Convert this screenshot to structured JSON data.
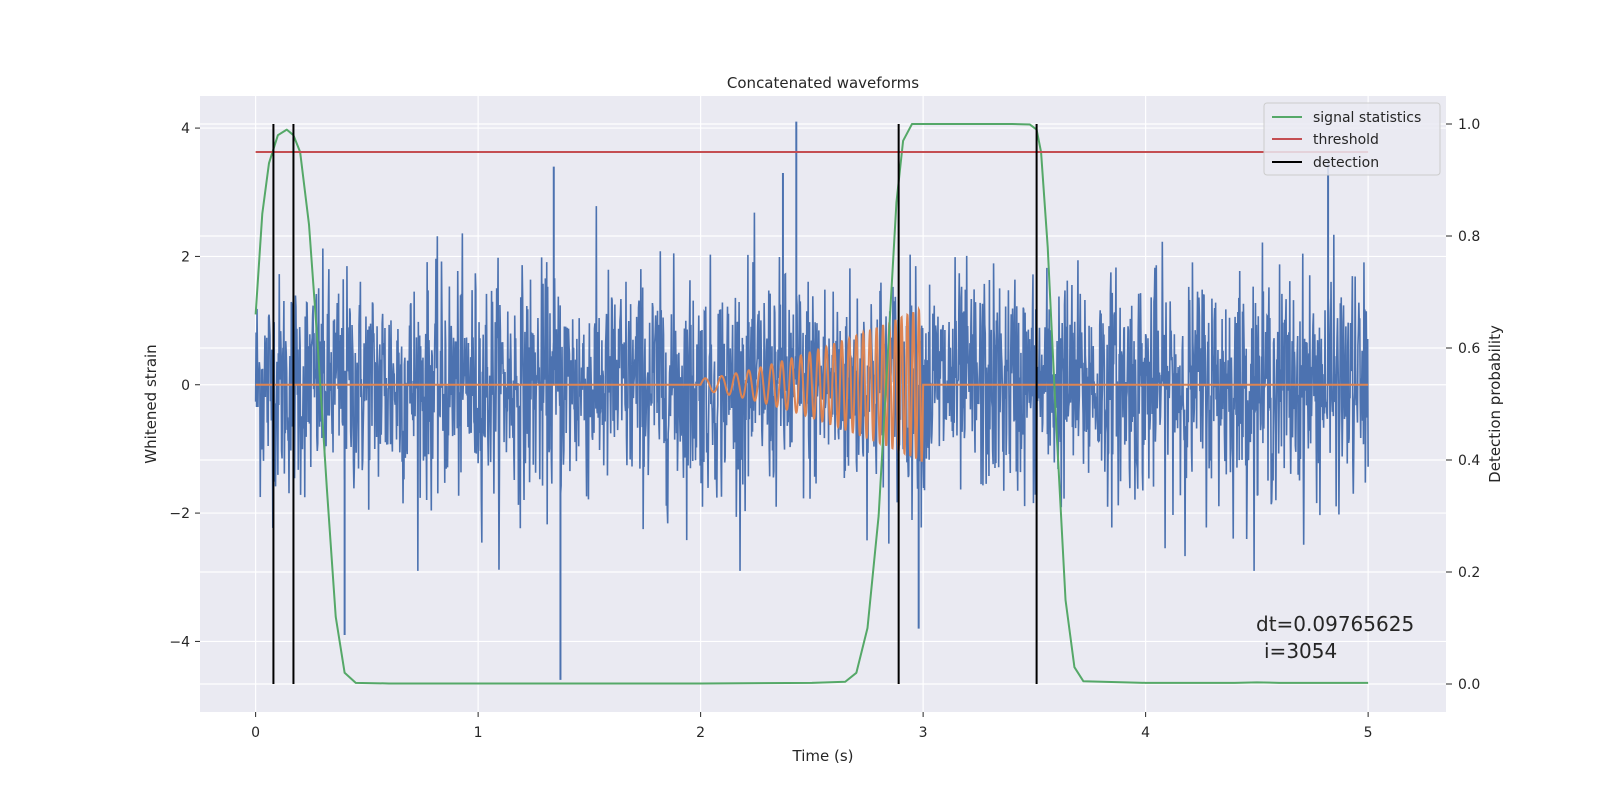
{
  "chart_data": {
    "type": "line",
    "title": "Concatenated waveforms",
    "xlabel": "Time (s)",
    "ylabel": "Whitened strain",
    "y2label": "Detection probability",
    "xlim": [
      -0.25,
      5.35
    ],
    "ylim": [
      -5.1,
      4.5
    ],
    "y2lim": [
      -0.05,
      1.05
    ],
    "xticks": [
      0,
      1,
      2,
      3,
      4,
      5
    ],
    "yticks": [
      -4,
      -2,
      0,
      2,
      4
    ],
    "y2ticks": [
      0.0,
      0.2,
      0.4,
      0.6,
      0.8,
      1.0
    ],
    "xtick_labels": [
      "0",
      "1",
      "2",
      "3",
      "4",
      "5"
    ],
    "ytick_labels": [
      "−4",
      "−2",
      "0",
      "2",
      "4"
    ],
    "y2tick_labels": [
      "0.0",
      "0.2",
      "0.4",
      "0.6",
      "0.8",
      "1.0"
    ],
    "grid": true,
    "legend_position": "top-right",
    "colors": {
      "strain": "#4c72b0",
      "waveform": "#dd8452",
      "signal_statistics": "#55a868",
      "threshold": "#c44e52",
      "detection": "#000000",
      "plot_background": "#eaeaf2",
      "grid": "#ffffff"
    },
    "legend": [
      {
        "label": "signal statistics",
        "color": "#55a868"
      },
      {
        "label": "threshold",
        "color": "#c44e52"
      },
      {
        "label": "detection",
        "color": "#000000"
      }
    ],
    "series": [
      {
        "name": "signal statistics",
        "axis": "right",
        "x": [
          0.0,
          0.03,
          0.06,
          0.1,
          0.14,
          0.17,
          0.2,
          0.24,
          0.28,
          0.32,
          0.36,
          0.4,
          0.45,
          0.6,
          1.0,
          2.0,
          2.5,
          2.65,
          2.7,
          2.75,
          2.8,
          2.84,
          2.88,
          2.91,
          2.95,
          3.0,
          3.4,
          3.48,
          3.51,
          3.53,
          3.56,
          3.6,
          3.64,
          3.68,
          3.72,
          4.0,
          4.4,
          4.5,
          4.6,
          5.0
        ],
        "y": [
          0.66,
          0.84,
          0.93,
          0.98,
          0.99,
          0.98,
          0.95,
          0.82,
          0.6,
          0.35,
          0.12,
          0.02,
          0.002,
          0.001,
          0.001,
          0.001,
          0.002,
          0.004,
          0.02,
          0.1,
          0.3,
          0.58,
          0.86,
          0.97,
          1.0,
          1.0,
          1.0,
          0.999,
          0.99,
          0.95,
          0.78,
          0.45,
          0.15,
          0.03,
          0.005,
          0.002,
          0.002,
          0.003,
          0.002,
          0.002
        ]
      },
      {
        "name": "threshold",
        "axis": "right",
        "x": [
          0.0,
          5.0
        ],
        "y": [
          0.95,
          0.95
        ]
      }
    ],
    "detections_x": [
      0.08,
      0.17,
      2.89,
      3.51
    ],
    "strain": {
      "x_start": 0.0,
      "x_end": 5.0,
      "typical_amplitude": 1.0,
      "spikes": [
        {
          "x": 2.43,
          "y": 4.1
        },
        {
          "x": 1.37,
          "y": -4.6
        },
        {
          "x": 0.4,
          "y": -3.9
        },
        {
          "x": 2.98,
          "y": -3.8
        },
        {
          "x": 1.34,
          "y": 3.4
        },
        {
          "x": 2.37,
          "y": 3.3
        },
        {
          "x": 4.82,
          "y": 3.5
        }
      ]
    },
    "waveform": {
      "x_start": 2.0,
      "x_end": 3.0,
      "peak_amplitude": 1.2,
      "baseline": 0.0
    },
    "annotation": [
      "dt=0.09765625",
      "i=3054"
    ]
  }
}
